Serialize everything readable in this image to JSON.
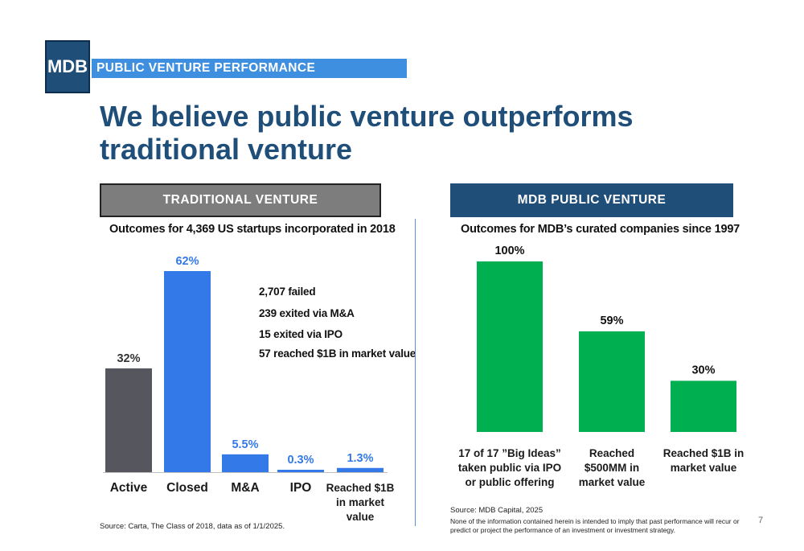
{
  "header": {
    "logo_text": "MDB",
    "section_label": "PUBLIC VENTURE PERFORMANCE",
    "title": "We believe public venture outperforms traditional venture"
  },
  "colors": {
    "brand_navy": "#1f4e79",
    "accent_blue": "#3f8fe0",
    "bar_dark_gray": "#56565e",
    "bar_blue": "#3479e8",
    "bar_green": "#00b050"
  },
  "traditional": {
    "header": "TRADITIONAL VENTURE",
    "subtitle": "Outcomes for 4,369 US startups incorporated in 2018",
    "stats": [
      "2,707 failed",
      "239 exited via M&A",
      "15 exited via IPO",
      "57 reached $1B in market value"
    ],
    "source": "Source: Carta, The Class of 2018, data as of 1/1/2025."
  },
  "mdb": {
    "header": "MDB PUBLIC VENTURE",
    "subtitle": "Outcomes for MDB’s curated companies since 1997",
    "source": "Source: MDB Capital, 2025",
    "disclaimer": "None of the information contained herein is intended to imply that past performance will recur or predict or project the performance of an investment or investment strategy."
  },
  "page_number": "7",
  "chart_data": [
    {
      "type": "bar",
      "categories": [
        "Active",
        "Closed",
        "M&A",
        "IPO",
        "Reached $1B in market value"
      ],
      "category_lines": [
        [
          "Active"
        ],
        [
          "Closed"
        ],
        [
          "M&A"
        ],
        [
          "IPO"
        ],
        [
          "Reached $1B",
          "in market",
          "value"
        ]
      ],
      "values": [
        32,
        62,
        5.5,
        0.3,
        1.3
      ],
      "value_labels": [
        "32%",
        "62%",
        "5.5%",
        "0.3%",
        "1.3%"
      ],
      "colors": [
        "#56565e",
        "#3479e8",
        "#3479e8",
        "#3479e8",
        "#3479e8"
      ],
      "label_colors": [
        "#333333",
        "#3479e8",
        "#3479e8",
        "#3479e8",
        "#3479e8"
      ],
      "ylim": [
        0,
        62
      ],
      "grid": false
    },
    {
      "type": "bar",
      "categories": [
        "17 of 17 ”Big Ideas” taken public via IPO or public offering",
        "Reached $500MM in market value",
        "Reached $1B in market value"
      ],
      "category_lines": [
        [
          "17 of 17 ”Big Ideas”",
          "taken public via IPO",
          "or public offering"
        ],
        [
          "Reached",
          "$500MM in",
          "market value"
        ],
        [
          "Reached $1B in",
          "market value"
        ]
      ],
      "values": [
        100,
        59,
        30
      ],
      "value_labels": [
        "100%",
        "59%",
        "30%"
      ],
      "colors": [
        "#00b050",
        "#00b050",
        "#00b050"
      ],
      "label_colors": [
        "#111111",
        "#111111",
        "#111111"
      ],
      "ylim": [
        0,
        100
      ],
      "grid": false
    }
  ]
}
